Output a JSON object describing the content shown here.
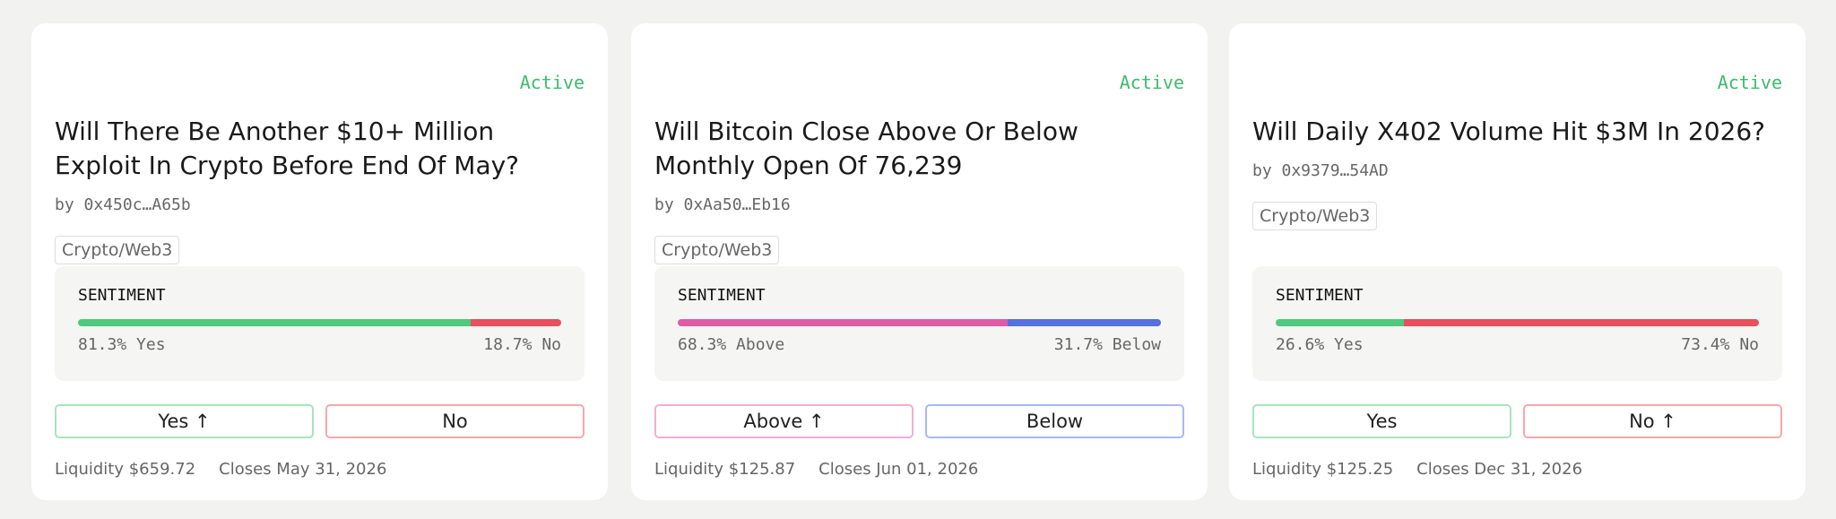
{
  "markets": [
    {
      "status": "Active",
      "title": "Will There Be Another $10+ Million Exploit In Crypto Before End Of May?",
      "author": "by 0x450c…A65b",
      "tag": "Crypto/Web3",
      "sentiment": {
        "label": "SENTIMENT",
        "options": [
          {
            "value": 81.3,
            "label": "81.3% Yes",
            "color": "#4fc97c"
          },
          {
            "value": 18.7,
            "label": "18.7% No",
            "color": "#e8505b"
          }
        ]
      },
      "buttons": [
        "Yes ↑",
        "No"
      ],
      "liquidity": "Liquidity $659.72",
      "closes": "Closes May 31, 2026"
    },
    {
      "status": "Active",
      "title": "Will Bitcoin Close Above Or Below Monthly Open Of 76,239",
      "author": "by 0xAa50…Eb16",
      "tag": "Crypto/Web3",
      "sentiment": {
        "label": "SENTIMENT",
        "options": [
          {
            "value": 68.3,
            "label": "68.3% Above",
            "color": "#e05ca8"
          },
          {
            "value": 31.7,
            "label": "31.7% Below",
            "color": "#5570df"
          }
        ]
      },
      "buttons": [
        "Above ↑",
        "Below"
      ],
      "liquidity": "Liquidity $125.87",
      "closes": "Closes Jun 01, 2026"
    },
    {
      "status": "Active",
      "title": "Will Daily X402 Volume Hit $3M In 2026?",
      "author": "by 0x9379…54AD",
      "tag": "Crypto/Web3",
      "sentiment": {
        "label": "SENTIMENT",
        "options": [
          {
            "value": 26.6,
            "label": "26.6% Yes",
            "color": "#4fc97c"
          },
          {
            "value": 73.4,
            "label": "73.4% No",
            "color": "#e8505b"
          }
        ]
      },
      "buttons": [
        "Yes",
        "No ↑"
      ],
      "liquidity": "Liquidity $125.25",
      "closes": "Closes Dec 31, 2026"
    }
  ]
}
